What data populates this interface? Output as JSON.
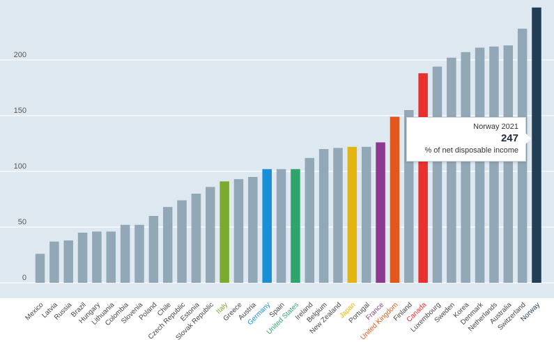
{
  "chart_data": {
    "type": "bar",
    "categories": [
      "Mexico",
      "Latvia",
      "Russia",
      "Brazil",
      "Hungary",
      "Lithuania",
      "Colombia",
      "Slovenia",
      "Poland",
      "Chile",
      "Czech Republic",
      "Estonia",
      "Slovak Republic",
      "Italy",
      "Greece",
      "Austria",
      "Germany",
      "Spain",
      "United States",
      "Ireland",
      "Belgium",
      "New Zealand",
      "Japan",
      "Portugal",
      "France",
      "United Kingdom",
      "Finland",
      "Canada",
      "Luxembourg",
      "Sweden",
      "Korea",
      "Denmark",
      "Netherlands",
      "Australia",
      "Switzerland",
      "Norway"
    ],
    "values": [
      26,
      37,
      38,
      45,
      46,
      46,
      52,
      52,
      60,
      68,
      74,
      80,
      86,
      91,
      93,
      95,
      102,
      102,
      102,
      112,
      120,
      121,
      122,
      122,
      126,
      149,
      155,
      188,
      194,
      202,
      207,
      211,
      212,
      213,
      228,
      247
    ],
    "highlight_colors": {
      "Italy": "#7aab2f",
      "Germany": "#1a8fd9",
      "United States": "#2ea56b",
      "Japan": "#e5b50f",
      "France": "#8b3a8f",
      "United Kingdom": "#e2581b",
      "Canada": "#e8312f",
      "Norway": "#223e56"
    },
    "default_bar_color": "#93a8b6",
    "y_ticks": [
      0,
      50,
      100,
      150,
      200
    ],
    "ylim": [
      -10,
      250
    ],
    "grid": true,
    "background_color": "#dde8f0",
    "title": "",
    "xlabel": "",
    "ylabel": ""
  },
  "tooltip": {
    "title": "Norway 2021",
    "value": "247",
    "unit": "% of net disposable income"
  }
}
